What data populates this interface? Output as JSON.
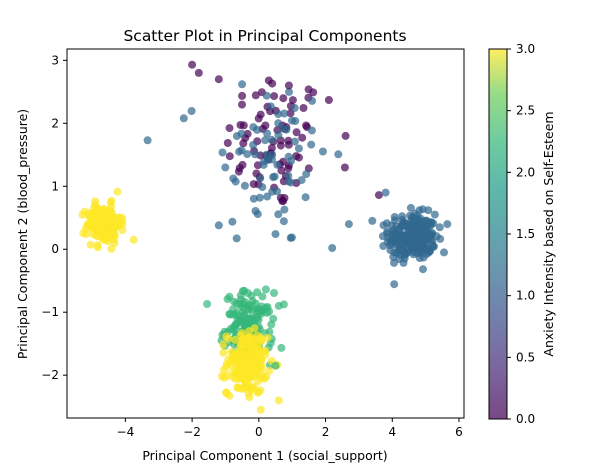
{
  "chart_data": {
    "type": "scatter",
    "title": "Scatter Plot in Principal Components",
    "xlabel": "Principal Component 1 (social_support)",
    "ylabel": "Principal Component 2 (blood_pressure)",
    "xlim": [
      -5.75,
      6.15
    ],
    "ylim": [
      -2.68,
      3.18
    ],
    "xticks": [
      -4,
      -2,
      0,
      2,
      4,
      6
    ],
    "yticks": [
      -2,
      -1,
      0,
      1,
      2,
      3
    ],
    "colorbar": {
      "label": "Anxiety Intensity based on Self-Esteem",
      "range": [
        0.0,
        3.0
      ],
      "ticks": [
        "0.0",
        "0.5",
        "1.0",
        "1.5",
        "2.0",
        "2.5",
        "3.0"
      ],
      "colormap": "viridis"
    },
    "point_alpha": 0.7,
    "clusters": [
      {
        "category": 0,
        "color": "#440154",
        "center": [
          0.5,
          1.7
        ],
        "spread": [
          0.75,
          0.55
        ],
        "count": 75
      },
      {
        "category": 1,
        "color": "#31688e",
        "center": [
          0.3,
          1.4
        ],
        "spread": [
          0.9,
          0.7
        ],
        "count": 70
      },
      {
        "category": 1,
        "color": "#31688e",
        "center": [
          4.6,
          0.2
        ],
        "spread": [
          0.35,
          0.18
        ],
        "count": 260
      },
      {
        "category": 2,
        "color": "#35b779",
        "center": [
          -0.3,
          -1.25
        ],
        "spread": [
          0.35,
          0.28
        ],
        "count": 160
      },
      {
        "category": 3,
        "color": "#fde725",
        "center": [
          -0.35,
          -1.8
        ],
        "spread": [
          0.3,
          0.25
        ],
        "count": 200
      },
      {
        "category": 3,
        "color": "#fde725",
        "center": [
          -4.65,
          0.4
        ],
        "spread": [
          0.25,
          0.15
        ],
        "count": 180
      }
    ],
    "points": [
      {
        "x": -2.0,
        "y": 2.93,
        "c": 0
      },
      {
        "x": -1.8,
        "y": 2.8,
        "c": 0
      },
      {
        "x": -1.2,
        "y": 2.7,
        "c": 0
      },
      {
        "x": 0.3,
        "y": 2.68,
        "c": 0
      },
      {
        "x": 0.9,
        "y": 2.6,
        "c": 0
      },
      {
        "x": -0.5,
        "y": 2.62,
        "c": 1
      },
      {
        "x": -2.25,
        "y": 2.08,
        "c": 1
      },
      {
        "x": 2.6,
        "y": 1.8,
        "c": 0
      },
      {
        "x": 2.2,
        "y": 0.02,
        "c": 1
      },
      {
        "x": -1.2,
        "y": 0.38,
        "c": 1
      },
      {
        "x": 0.5,
        "y": 0.24,
        "c": 1
      },
      {
        "x": 2.7,
        "y": 0.4,
        "c": 1
      },
      {
        "x": 3.4,
        "y": 0.45,
        "c": 1
      },
      {
        "x": 3.6,
        "y": 0.86,
        "c": 0
      },
      {
        "x": 3.8,
        "y": 0.9,
        "c": 1
      },
      {
        "x": 5.55,
        "y": -0.05,
        "c": 1
      },
      {
        "x": 5.65,
        "y": 0.4,
        "c": 1
      },
      {
        "x": -3.75,
        "y": 0.15,
        "c": 3
      },
      {
        "x": 0.6,
        "y": -2.4,
        "c": 3
      },
      {
        "x": 0.6,
        "y": -0.9,
        "c": 2
      },
      {
        "x": -1.55,
        "y": -0.87,
        "c": 2
      },
      {
        "x": 0.5,
        "y": -1.85,
        "c": 2
      },
      {
        "x": 2.1,
        "y": 2.37,
        "c": 0
      },
      {
        "x": 1.2,
        "y": 1.6,
        "c": 1
      }
    ]
  }
}
